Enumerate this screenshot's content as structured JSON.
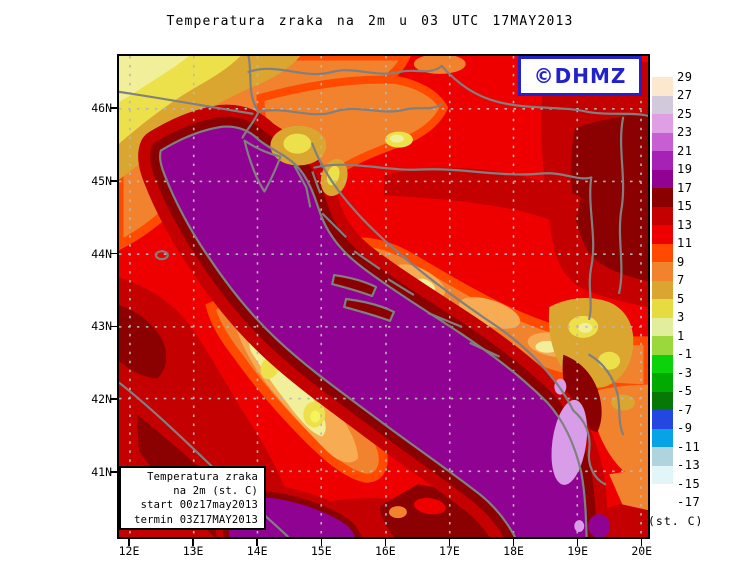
{
  "title": "Temperatura zraka na 2m u 03 UTC 17MAY2013",
  "watermark": {
    "label": "©DHMZ",
    "color": "#2222CC"
  },
  "legend": {
    "lines": [
      "Temperatura zraka",
      "na 2m (st. C)",
      "start 00z17may2013",
      "termin 03Z17MAY2013"
    ]
  },
  "axes": {
    "lat_labels": [
      "46N",
      "45N",
      "44N",
      "43N",
      "42N",
      "41N"
    ],
    "lon_labels": [
      "12E",
      "13E",
      "14E",
      "15E",
      "16E",
      "17E",
      "18E",
      "19E",
      "20E"
    ]
  },
  "colorbar": {
    "unit": "(st. C)",
    "boundary_labels": [
      "29",
      "27",
      "25",
      "23",
      "21",
      "19",
      "17",
      "15",
      "13",
      "11",
      "9",
      "7",
      "5",
      "3",
      "1",
      "-1",
      "-3",
      "-5",
      "-7",
      "-9",
      "-11",
      "-13",
      "-15",
      "-17"
    ],
    "swatch_colors": [
      "#FBE8CF",
      "#D2C9DC",
      "#DF9FE5",
      "#C75FD3",
      "#A621B5",
      "#8F0292",
      "#8B0000",
      "#C40000",
      "#EF0000",
      "#FF4A00",
      "#F1822E",
      "#DAA62F",
      "#E6DB41",
      "#E3EE9D",
      "#9BD83D",
      "#0BD30B",
      "#00AA00",
      "#067806",
      "#2347E0",
      "#06A3E6",
      "#AFD4DE",
      "#E2F6F8",
      "#FFFFFF"
    ]
  },
  "map_palette": {
    "sea_purple": "#8F0292",
    "maroon": "#8B0000",
    "dark_red": "#C40000",
    "red": "#EF0000",
    "orange_red": "#FF4A00",
    "orange": "#F1822E",
    "light_orange": "#F7AB52",
    "goldenrod": "#DAA62F",
    "yellow": "#EDE14B",
    "pale_yellow": "#F2EF9B",
    "light_orchid": "#D89CE8",
    "coast_gray": "#808080"
  }
}
